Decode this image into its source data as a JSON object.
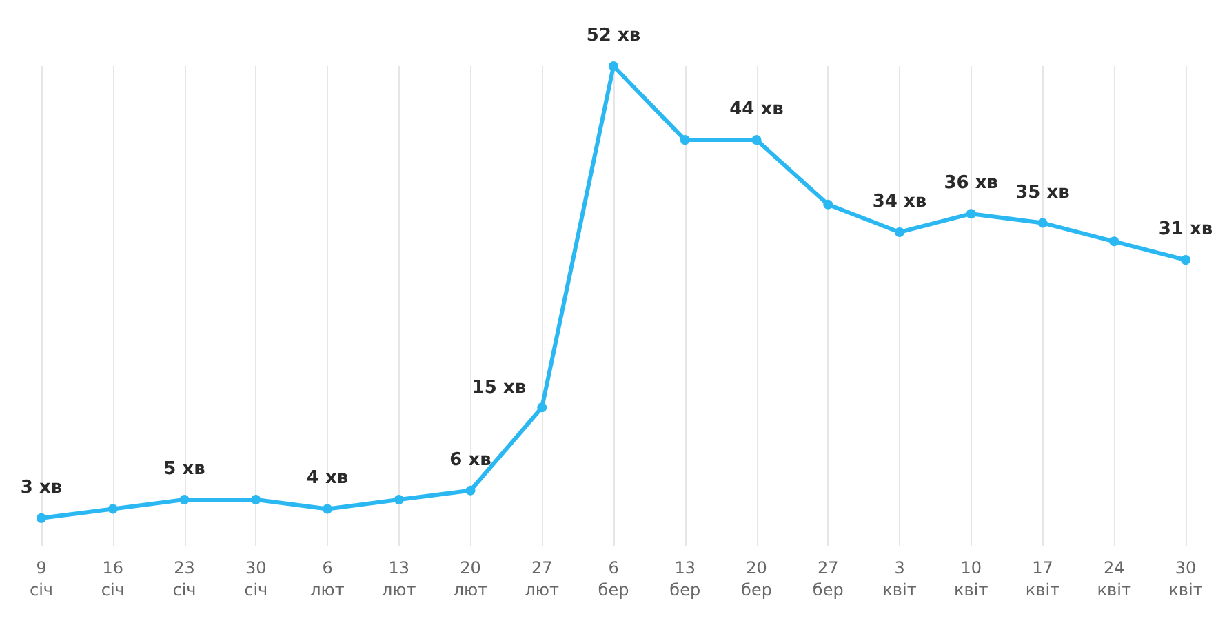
{
  "chart_data": {
    "type": "line",
    "categories": [
      "9 січ",
      "16 січ",
      "23 січ",
      "30 січ",
      "6 лют",
      "13 лют",
      "20 лют",
      "27 лют",
      "6 бер",
      "13 бер",
      "20 бер",
      "27 бер",
      "3 квіт",
      "10 квіт",
      "17 квіт",
      "24 квіт",
      "30 квіт"
    ],
    "series": [
      {
        "color": "#2bb8f2",
        "values": [
          3,
          4,
          5,
          5,
          4,
          5,
          6,
          15,
          52,
          44,
          44,
          37,
          34,
          36,
          35,
          33,
          31
        ],
        "value_labels": [
          "3 хв",
          null,
          "5 хв",
          null,
          "4 хв",
          null,
          "6 хв",
          "15 хв",
          "52 хв",
          null,
          "44 хв",
          null,
          "34 хв",
          "36 хв",
          "35 хв",
          null,
          "31 хв"
        ]
      }
    ],
    "ylim": [
      0,
      52
    ],
    "grid": "x",
    "marker": "circle",
    "line_style": "solid",
    "tick_labels": "x"
  }
}
